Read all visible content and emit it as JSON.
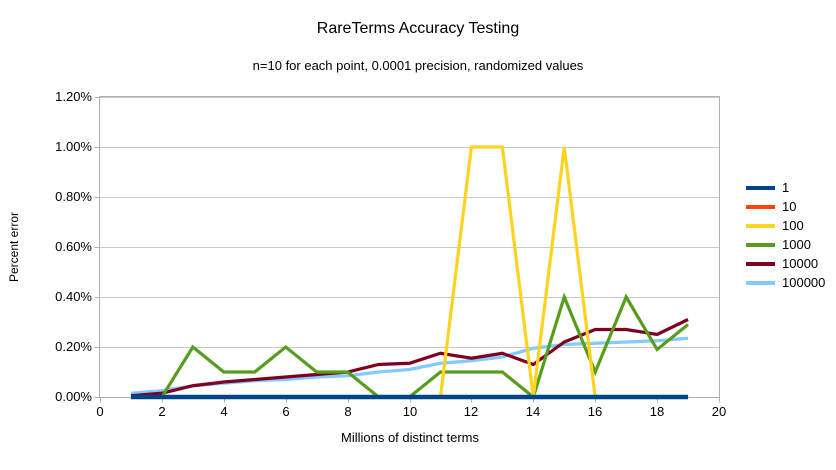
{
  "chart_data": {
    "type": "line",
    "title": "RareTerms Accuracy Testing",
    "subtitle": "n=10 for each point, 0.0001 precision, randomized values",
    "xlabel": "Millions of distinct terms",
    "ylabel": "Percent error",
    "x_tick_labels": [
      "0",
      "2",
      "4",
      "6",
      "8",
      "10",
      "12",
      "14",
      "16",
      "18",
      "20"
    ],
    "y_tick_labels": [
      "0.00%",
      "0.20%",
      "0.40%",
      "0.60%",
      "0.80%",
      "1.00%",
      "1.20%"
    ],
    "xlim": [
      0,
      20
    ],
    "ylim": [
      0,
      1.2
    ],
    "y_unit": "percent",
    "grid": "horizontal",
    "legend_position": "right",
    "x": [
      1,
      2,
      3,
      4,
      5,
      6,
      7,
      8,
      9,
      10,
      11,
      12,
      13,
      14,
      15,
      16,
      17,
      18,
      19
    ],
    "series": [
      {
        "name": "1",
        "color": "#004586",
        "values": [
          0,
          0,
          0,
          0,
          0,
          0,
          0,
          0,
          0,
          0,
          0,
          0,
          0,
          0,
          0,
          0,
          0,
          0,
          0
        ]
      },
      {
        "name": "10",
        "color": "#ff420e",
        "values": [
          0,
          0,
          0,
          0,
          0,
          0,
          0,
          0,
          0,
          0,
          0,
          0,
          0,
          0,
          0,
          0,
          0,
          0,
          0
        ]
      },
      {
        "name": "100",
        "color": "#ffd320",
        "values": [
          0,
          0,
          0,
          0,
          0,
          0,
          0,
          0,
          0,
          0,
          0,
          1.0,
          1.0,
          0,
          1.0,
          0,
          0,
          0,
          0
        ]
      },
      {
        "name": "1000",
        "color": "#579d1c",
        "values": [
          0,
          0,
          0.2,
          0.1,
          0.1,
          0.2,
          0.1,
          0.1,
          0,
          0,
          0.1,
          0.1,
          0.1,
          0,
          0.4,
          0.1,
          0.4,
          0.19,
          0.29
        ]
      },
      {
        "name": "10000",
        "color": "#7e0021",
        "values": [
          0.005,
          0.015,
          0.045,
          0.06,
          0.07,
          0.08,
          0.09,
          0.1,
          0.13,
          0.135,
          0.175,
          0.155,
          0.175,
          0.13,
          0.22,
          0.27,
          0.27,
          0.25,
          0.31
        ]
      },
      {
        "name": "100000",
        "color": "#83caff",
        "values": [
          0.015,
          0.025,
          0.045,
          0.055,
          0.065,
          0.07,
          0.08,
          0.085,
          0.1,
          0.11,
          0.135,
          0.145,
          0.16,
          0.195,
          0.21,
          0.215,
          0.22,
          0.225,
          0.235
        ]
      }
    ]
  },
  "colors": {
    "background": "#ffffff",
    "grid": "#c9c9c9",
    "axis": "#b0b0b0",
    "text": "#000000"
  }
}
